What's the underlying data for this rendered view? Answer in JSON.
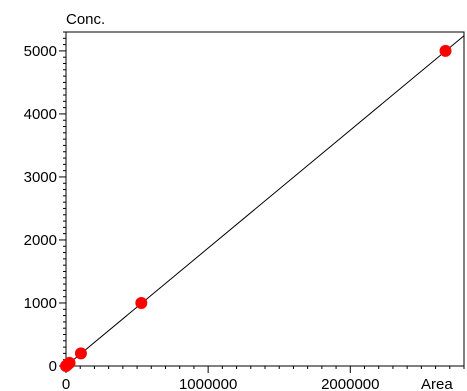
{
  "chart_data": {
    "type": "scatter",
    "title": "",
    "xlabel": "Area",
    "ylabel": "Conc.",
    "xlim": [
      0,
      2800000
    ],
    "ylim": [
      0,
      5300
    ],
    "grid": false,
    "x_ticks": [
      0,
      1000000,
      2000000
    ],
    "x_tick_labels": [
      "0",
      "1000000",
      "2000000"
    ],
    "y_ticks": [
      0,
      1000,
      2000,
      3000,
      4000,
      5000
    ],
    "y_tick_labels": [
      "0",
      "1000",
      "2000",
      "3000",
      "4000",
      "5000"
    ],
    "series": [
      {
        "points": [
          {
            "x": 0,
            "y": 0
          },
          {
            "x": 10000,
            "y": 20
          },
          {
            "x": 25000,
            "y": 50
          },
          {
            "x": 105000,
            "y": 200
          },
          {
            "x": 530000,
            "y": 1000
          },
          {
            "x": 2670000,
            "y": 5000
          }
        ],
        "color": "#ff0000"
      }
    ],
    "fit_line": {
      "x": [
        0,
        2800000
      ],
      "y": [
        0,
        5240
      ],
      "color": "#000000"
    }
  }
}
